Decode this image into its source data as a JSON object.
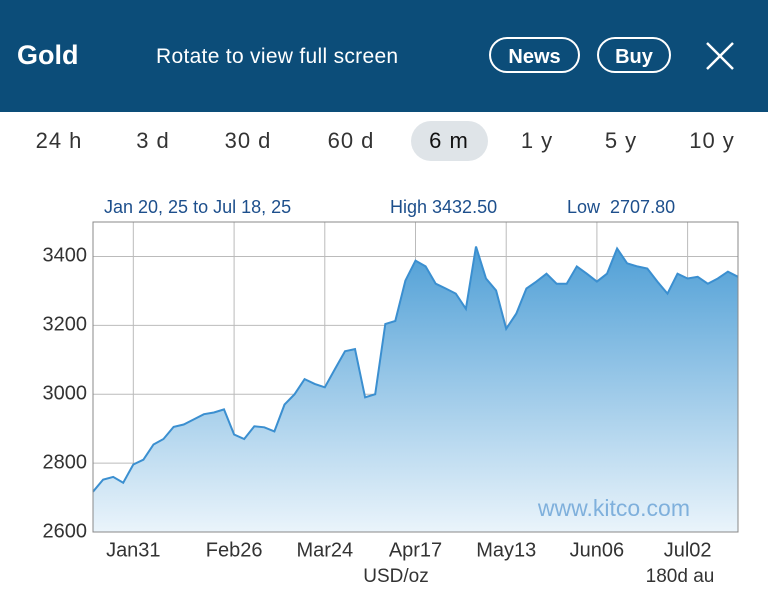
{
  "header": {
    "title": "Gold",
    "subtitle": "Rotate to view full screen",
    "buttons": [
      "News",
      "Buy"
    ]
  },
  "tabs": {
    "items": [
      "24 h",
      "3 d",
      "30 d",
      "60 d",
      "6 m",
      "1 y",
      "5 y",
      "10 y"
    ],
    "selected": 4
  },
  "chart_data": {
    "type": "area",
    "subtitle": "Jan 20, 25 to Jul 18, 25",
    "high_label": "High 3432.50",
    "low_label": "Low  2707.80",
    "watermark": "www.kitco.com",
    "y_label": "USD/oz",
    "note": "180d au",
    "categories": [
      null,
      null,
      null,
      null,
      "Jan31",
      null,
      null,
      null,
      null,
      null,
      null,
      null,
      null,
      null,
      "Feb26",
      null,
      null,
      null,
      null,
      null,
      null,
      null,
      null,
      "Mar24",
      null,
      null,
      null,
      null,
      null,
      null,
      null,
      null,
      "Apr17",
      null,
      null,
      null,
      null,
      null,
      null,
      null,
      null,
      "May13",
      null,
      null,
      null,
      null,
      null,
      null,
      null,
      null,
      "Jun06",
      null,
      null,
      null,
      null,
      null,
      null,
      null,
      null,
      "Jul02",
      null,
      null,
      null,
      null,
      null
    ],
    "series": [
      {
        "name": "Gold",
        "color": "#3b8fd0",
        "values": [
          2717,
          2752,
          2760,
          2743,
          2796,
          2810,
          2854,
          2870,
          2905,
          2912,
          2927,
          2942,
          2947,
          2956,
          2883,
          2870,
          2907,
          2904,
          2892,
          2970,
          3000,
          3044,
          3030,
          3020,
          3073,
          3125,
          3131,
          2991,
          3000,
          3204,
          3213,
          3330,
          3388,
          3371,
          3321,
          3307,
          3292,
          3248,
          3429,
          3336,
          3301,
          3190,
          3234,
          3307,
          3327,
          3350,
          3321,
          3321,
          3371,
          3350,
          3327,
          3350,
          3423,
          3380,
          3371,
          3365,
          3327,
          3292,
          3350,
          3336,
          3341,
          3321,
          3336,
          3356,
          3341
        ]
      }
    ],
    "ylim": [
      2600,
      3500
    ],
    "yticks": [
      2600,
      2800,
      3000,
      3200,
      3400
    ],
    "grid": true
  }
}
